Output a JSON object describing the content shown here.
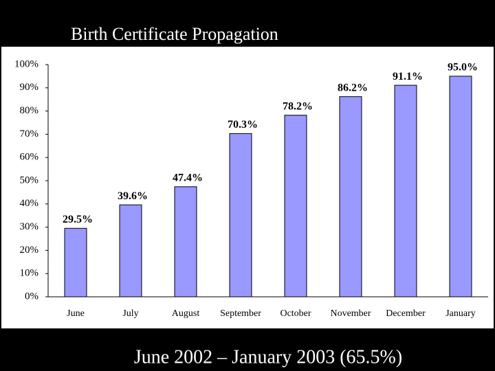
{
  "chart_data": {
    "type": "bar",
    "title": "Birth Certificate Propagation",
    "caption": "June 2002 – January 2003 (65.5%)",
    "categories": [
      "June",
      "July",
      "August",
      "September",
      "October",
      "November",
      "December",
      "January"
    ],
    "values": [
      29.5,
      39.6,
      47.4,
      70.3,
      78.2,
      86.2,
      91.1,
      95.0
    ],
    "value_labels": [
      "29.5%",
      "39.6%",
      "47.4%",
      "70.3%",
      "78.2%",
      "86.2%",
      "91.1%",
      "95.0%"
    ],
    "color": "#9999ff",
    "ylim": [
      0,
      100
    ],
    "yticks": [
      {
        "value": 0,
        "label": "0%"
      },
      {
        "value": 10,
        "label": "10%"
      },
      {
        "value": 20,
        "label": "20%"
      },
      {
        "value": 30,
        "label": "30%"
      },
      {
        "value": 40,
        "label": "40%"
      },
      {
        "value": 50,
        "label": "50%"
      },
      {
        "value": 60,
        "label": "60%"
      },
      {
        "value": 70,
        "label": "70%"
      },
      {
        "value": 80,
        "label": "80%"
      },
      {
        "value": 90,
        "label": "90%"
      },
      {
        "value": 100,
        "label": "100%"
      }
    ],
    "grid": false
  }
}
